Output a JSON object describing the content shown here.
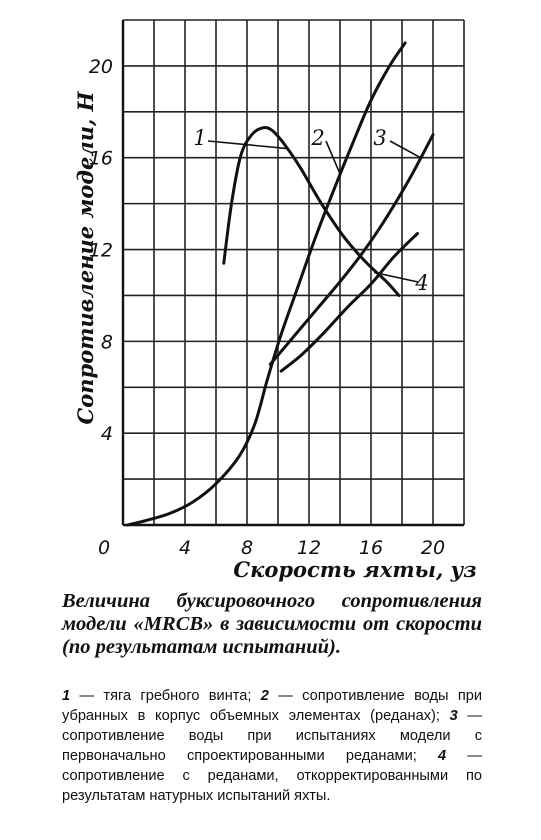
{
  "chart_data": {
    "type": "line",
    "xlabel": "Скорость яхты, уз",
    "ylabel": "Сопротивление модели, Н",
    "xlim": [
      0,
      22
    ],
    "ylim": [
      0,
      22
    ],
    "x_ticks": [
      "0",
      "4",
      "8",
      "12",
      "16",
      "20"
    ],
    "y_ticks": [
      "4",
      "8",
      "12",
      "16",
      "20"
    ],
    "grid": true,
    "series": [
      {
        "name": "1",
        "points": [
          [
            6.5,
            11.4
          ],
          [
            7.0,
            14.0
          ],
          [
            7.6,
            16.1
          ],
          [
            8.3,
            17.0
          ],
          [
            9.0,
            17.3
          ],
          [
            9.6,
            17.2
          ],
          [
            10.4,
            16.6
          ],
          [
            11.5,
            15.5
          ],
          [
            12.8,
            14.0
          ],
          [
            14.2,
            12.6
          ],
          [
            15.6,
            11.5
          ],
          [
            17.0,
            10.6
          ],
          [
            17.8,
            10.0
          ]
        ]
      },
      {
        "name": "2",
        "points": [
          [
            0.3,
            0.0
          ],
          [
            1.5,
            0.2
          ],
          [
            3.0,
            0.5
          ],
          [
            4.5,
            1.0
          ],
          [
            6.0,
            1.8
          ],
          [
            7.5,
            3.0
          ],
          [
            8.5,
            4.4
          ],
          [
            9.3,
            6.3
          ],
          [
            10.2,
            8.3
          ],
          [
            11.3,
            10.4
          ],
          [
            12.4,
            12.5
          ],
          [
            13.6,
            14.6
          ],
          [
            14.8,
            16.6
          ],
          [
            16.0,
            18.5
          ],
          [
            17.2,
            20.0
          ],
          [
            18.2,
            21.0
          ]
        ]
      },
      {
        "name": "3",
        "points": [
          [
            9.5,
            7.0
          ],
          [
            11.0,
            8.2
          ],
          [
            12.5,
            9.4
          ],
          [
            14.0,
            10.6
          ],
          [
            15.5,
            11.9
          ],
          [
            17.0,
            13.4
          ],
          [
            18.5,
            15.1
          ],
          [
            20.0,
            17.0
          ]
        ]
      },
      {
        "name": "4",
        "points": [
          [
            10.2,
            6.7
          ],
          [
            11.5,
            7.4
          ],
          [
            13.0,
            8.4
          ],
          [
            14.5,
            9.5
          ],
          [
            16.0,
            10.5
          ],
          [
            17.5,
            11.7
          ],
          [
            19.0,
            12.7
          ]
        ]
      }
    ]
  },
  "caption": "Величина буксировочного сопротивления модели «MRCB» в зависимости от скорости (по результатам испытаний).",
  "legend": [
    {
      "num": "1",
      "text": " — тяга гребного винта; "
    },
    {
      "num": "2",
      "text": " — сопротивление воды при убранных в корпус объемных элементах (реданах); "
    },
    {
      "num": "3",
      "text": " — сопротивление воды при испытаниях модели с первоначально спроектированными реданами; "
    },
    {
      "num": "4",
      "text": " — сопротивление с реданами, откорректированными по результатам натурных испытаний яхты."
    }
  ]
}
